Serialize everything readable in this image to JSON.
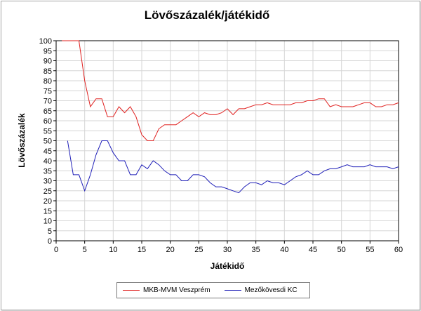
{
  "chart_data": {
    "type": "line",
    "title": "Lövőszázalék/játékidő",
    "xlabel": "Játékidő",
    "ylabel": "Lövőszázalék",
    "xlim": [
      0,
      60
    ],
    "ylim": [
      0,
      100
    ],
    "x_ticks": [
      0,
      5,
      10,
      15,
      20,
      25,
      30,
      35,
      40,
      45,
      50,
      55,
      60
    ],
    "y_ticks": [
      0,
      5,
      10,
      15,
      20,
      25,
      30,
      35,
      40,
      45,
      50,
      55,
      60,
      65,
      70,
      75,
      80,
      85,
      90,
      95,
      100
    ],
    "grid": true,
    "legend_position": "bottom",
    "series": [
      {
        "name": "MKB-MVM Veszprém",
        "color": "#e0201f",
        "x": [
          1,
          2,
          3,
          4,
          5,
          6,
          7,
          8,
          9,
          10,
          11,
          12,
          13,
          14,
          15,
          16,
          17,
          18,
          19,
          20,
          21,
          22,
          23,
          24,
          25,
          26,
          27,
          28,
          29,
          30,
          31,
          32,
          33,
          34,
          35,
          36,
          37,
          38,
          39,
          40,
          41,
          42,
          43,
          44,
          45,
          46,
          47,
          48,
          49,
          50,
          51,
          52,
          53,
          54,
          55,
          56,
          57,
          58,
          59,
          60
        ],
        "values": [
          100,
          100,
          100,
          100,
          80,
          67,
          71,
          71,
          62,
          62,
          67,
          64,
          67,
          62,
          53,
          50,
          50,
          56,
          58,
          58,
          58,
          60,
          62,
          64,
          62,
          64,
          63,
          63,
          64,
          66,
          63,
          66,
          66,
          67,
          68,
          68,
          69,
          68,
          68,
          68,
          68,
          69,
          69,
          70,
          70,
          71,
          71,
          67,
          68,
          67,
          67,
          67,
          68,
          69,
          69,
          67,
          67,
          68,
          68,
          69
        ]
      },
      {
        "name": "Mezőkövesdi KC",
        "color": "#1f1fb8",
        "x": [
          2,
          3,
          4,
          5,
          6,
          7,
          8,
          9,
          10,
          11,
          12,
          13,
          14,
          15,
          16,
          17,
          18,
          19,
          20,
          21,
          22,
          23,
          24,
          25,
          26,
          27,
          28,
          29,
          30,
          31,
          32,
          33,
          34,
          35,
          36,
          37,
          38,
          39,
          40,
          41,
          42,
          43,
          44,
          45,
          46,
          47,
          48,
          49,
          50,
          51,
          52,
          53,
          54,
          55,
          56,
          57,
          58,
          59,
          60
        ],
        "values": [
          50,
          33,
          33,
          25,
          33,
          43,
          50,
          50,
          44,
          40,
          40,
          33,
          33,
          38,
          36,
          40,
          38,
          35,
          33,
          33,
          30,
          30,
          33,
          33,
          32,
          29,
          27,
          27,
          26,
          25,
          24,
          27,
          29,
          29,
          28,
          30,
          29,
          29,
          28,
          30,
          32,
          33,
          35,
          33,
          33,
          35,
          36,
          36,
          37,
          38,
          37,
          37,
          37,
          38,
          37,
          37,
          37,
          36,
          37
        ]
      }
    ]
  }
}
